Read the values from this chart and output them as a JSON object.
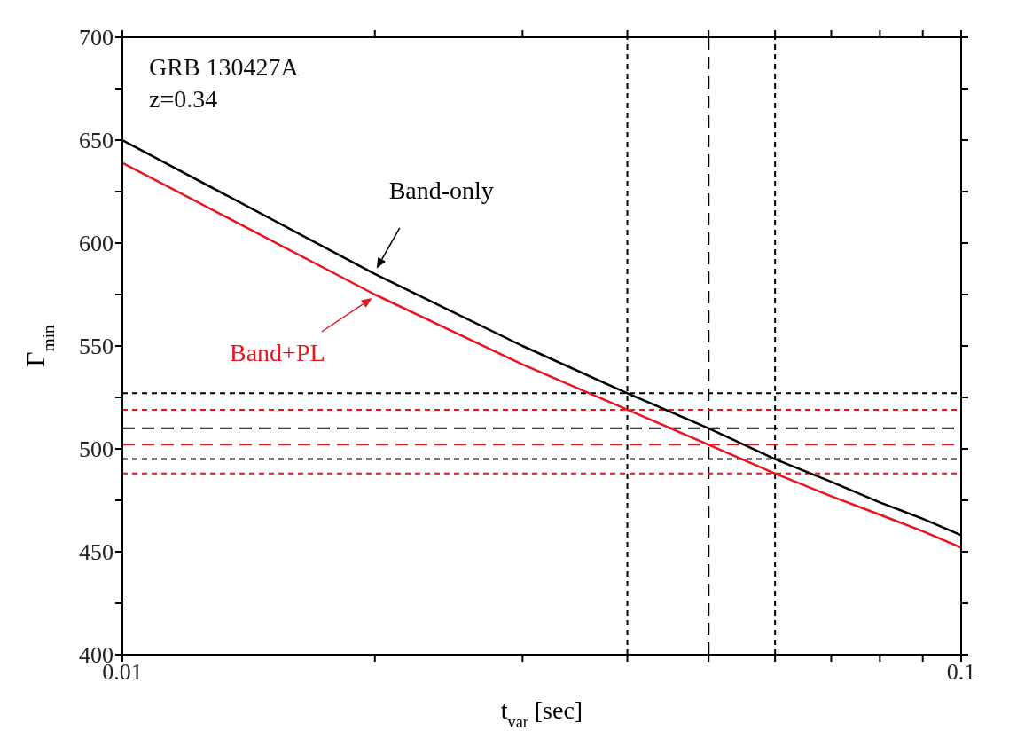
{
  "chart_data": {
    "type": "line",
    "xlabel": "t$_{var}$ [sec]",
    "ylabel": "Γ$_{min}$",
    "log": "x",
    "x": [
      0.01,
      0.02,
      0.03,
      0.04,
      0.05,
      0.06,
      0.07,
      0.08,
      0.09,
      0.1
    ],
    "series": [
      {
        "name": "Band-only",
        "color": "#000000",
        "values": [
          650,
          585,
          550,
          527,
          510,
          495,
          484,
          474,
          466,
          458
        ]
      },
      {
        "name": "Band+PL",
        "color": "#e8141e",
        "values": [
          639,
          575,
          541,
          519,
          502,
          488,
          477,
          468,
          460,
          452
        ]
      }
    ],
    "xlim": [
      0.01,
      0.1
    ],
    "xticks": [
      0.01,
      {
        "value": 0.02,
        "label": null
      },
      {
        "value": 0.03,
        "label": null
      },
      {
        "value": 0.04,
        "label": null
      },
      {
        "value": 0.05,
        "label": null
      },
      {
        "value": 0.06,
        "label": null
      },
      {
        "value": 0.07,
        "label": null
      },
      {
        "value": 0.08,
        "label": null
      },
      {
        "value": 0.09,
        "label": null
      },
      0.1
    ],
    "ylim": [
      400,
      700
    ],
    "yticks": [
      400,
      {
        "value": 425,
        "label": null
      },
      450,
      {
        "value": 475,
        "label": null
      },
      500,
      {
        "value": 525,
        "label": null
      },
      550,
      {
        "value": 575,
        "label": null
      },
      600,
      {
        "value": 625,
        "label": null
      },
      650,
      {
        "value": 675,
        "label": null
      },
      700
    ],
    "ref_lines": [
      {
        "axis": "x",
        "value": 0.04,
        "color": "#000000",
        "line_style": "dotted"
      },
      {
        "axis": "x",
        "value": 0.05,
        "color": "#000000",
        "line_style": "dashed"
      },
      {
        "axis": "x",
        "value": 0.06,
        "color": "#000000",
        "line_style": "dotted"
      },
      {
        "axis": "y",
        "value": 527,
        "color": "#000000",
        "line_style": "dotted"
      },
      {
        "axis": "y",
        "value": 510,
        "color": "#000000",
        "line_style": "dashed"
      },
      {
        "axis": "y",
        "value": 495,
        "color": "#000000",
        "line_style": "dotted"
      },
      {
        "axis": "y",
        "value": 519,
        "color": "#e8141e",
        "line_style": "dotted"
      },
      {
        "axis": "y",
        "value": 502,
        "color": "#e8141e",
        "line_style": "dashed"
      },
      {
        "axis": "y",
        "value": 488,
        "color": "#e8141e",
        "line_style": "dotted"
      }
    ],
    "annotations": [
      "GRB 130427A",
      "z=0.34"
    ],
    "marker": "none",
    "line_style": "solid"
  }
}
